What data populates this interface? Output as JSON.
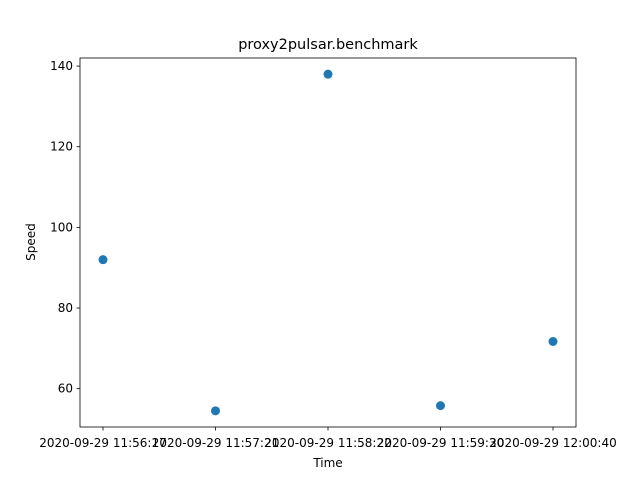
{
  "chart_data": {
    "type": "scatter",
    "title": "proxy2pulsar.benchmark",
    "xlabel": "Time",
    "ylabel": "Speed",
    "x": [
      "2020-09-29 11:56:17",
      "2020-09-29 11:57:21",
      "2020-09-29 11:58:22",
      "2020-09-29 11:59:30",
      "2020-09-29 12:00:40"
    ],
    "y": [
      92,
      54.5,
      138,
      55.8,
      71.7
    ],
    "x_tick_labels": [
      "2020-09-29 11:56:17",
      "2020-09-29 11:57:21",
      "2020-09-29 11:58:22",
      "2020-09-29 11:59:30",
      "2020-09-29 12:00:40"
    ],
    "y_ticks": [
      60,
      80,
      100,
      120,
      140
    ],
    "ylim": [
      50.5,
      142
    ],
    "grid": false,
    "marker_color": "#1f77b4"
  }
}
